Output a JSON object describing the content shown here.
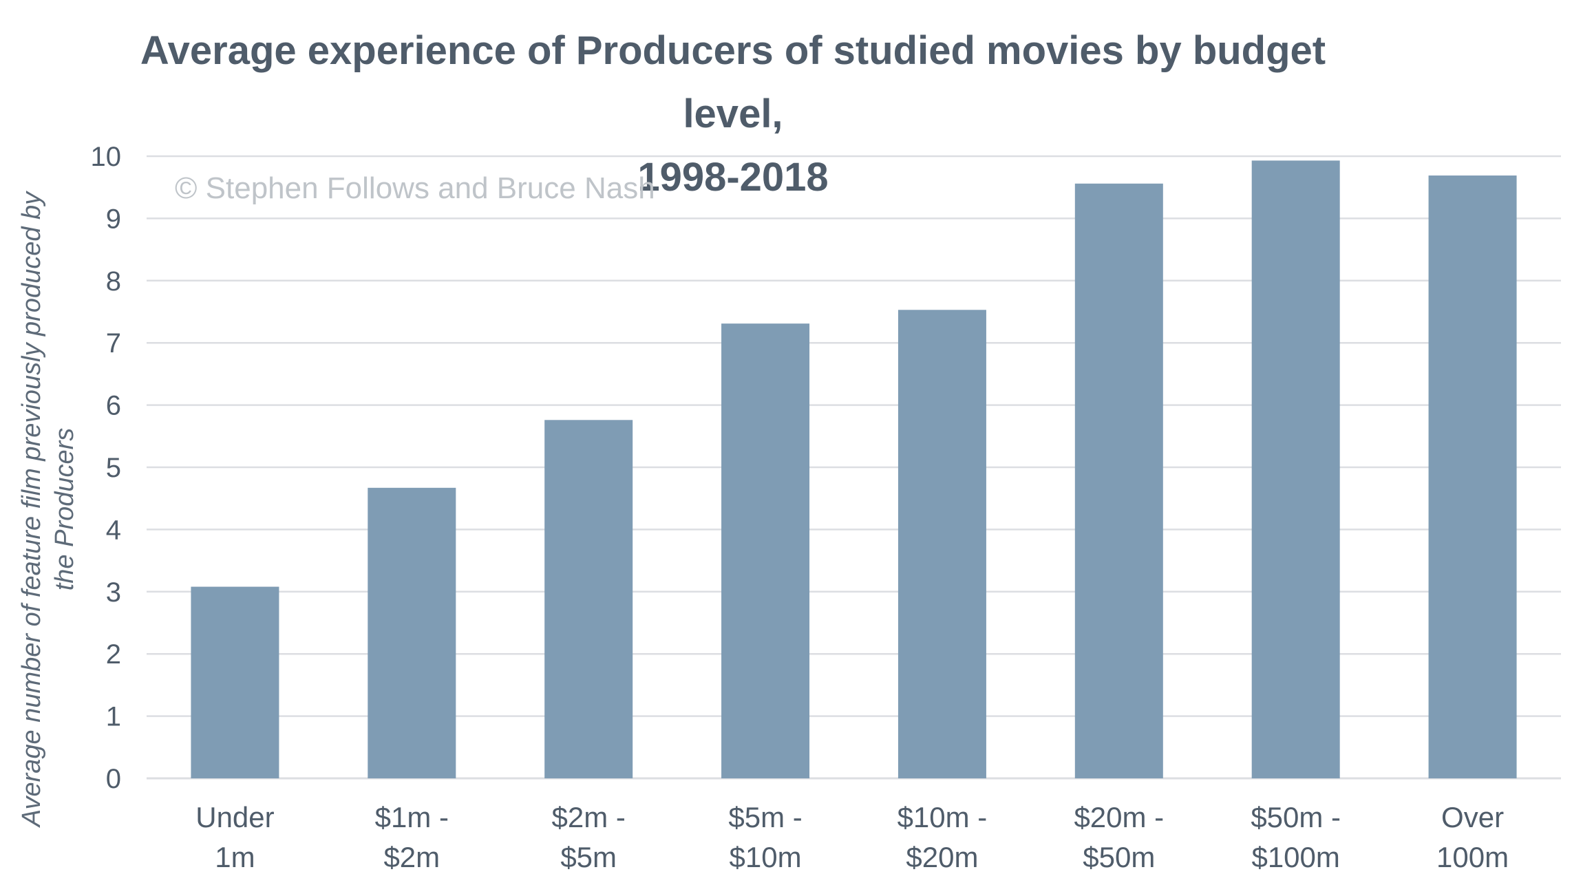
{
  "chart_data": {
    "type": "bar",
    "title_lines": [
      "Average experience of Producers of studied movies by budget level,",
      "1998-2018"
    ],
    "ylabel_lines": [
      "Average number of feature film previously produced by",
      "the Producers"
    ],
    "xlabel": "",
    "watermark": "© Stephen Follows and Bruce Nash",
    "categories": [
      [
        "Under",
        "1m"
      ],
      [
        "$1m -",
        "$2m"
      ],
      [
        "$2m -",
        "$5m"
      ],
      [
        "$5m -",
        "$10m"
      ],
      [
        "$10m -",
        "$20m"
      ],
      [
        "$20m -",
        "$50m"
      ],
      [
        "$50m -",
        "$100m"
      ],
      [
        "Over",
        "100m"
      ]
    ],
    "values": [
      3.08,
      4.67,
      5.76,
      7.31,
      7.53,
      9.56,
      9.93,
      9.69
    ],
    "yticks": [
      "0",
      "1",
      "2",
      "3",
      "4",
      "5",
      "6",
      "7",
      "8",
      "9",
      "10"
    ],
    "ylim": [
      0,
      10
    ],
    "grid": true,
    "bar_color": "#7f9cb4",
    "grid_color": "#dcdee2",
    "text_color": "#4f5c6a"
  }
}
